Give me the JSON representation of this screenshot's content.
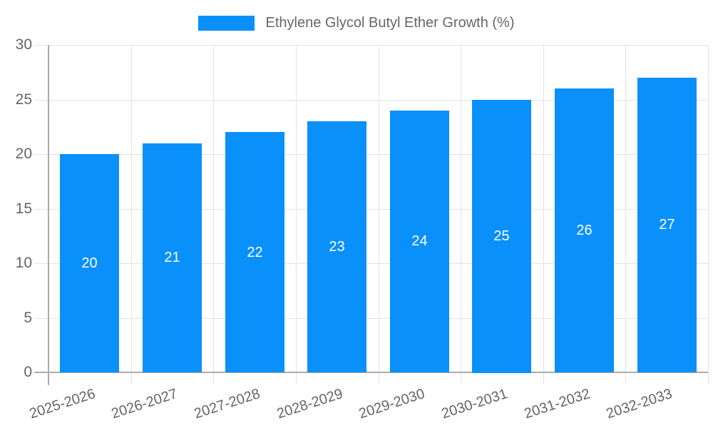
{
  "legend": {
    "label": "Ethylene Glycol Butyl Ether Growth (%)"
  },
  "colors": {
    "bar": "#0A90FA",
    "grid": "#E3E3E3",
    "axis": "#ABABAB",
    "axis_label_text": "#666666",
    "value_label_text": "#FFFFFF",
    "background": "#FFFFFF"
  },
  "chart_data": {
    "type": "bar",
    "title": "",
    "xlabel": "",
    "ylabel": "",
    "categories": [
      "2025-2026",
      "2026-2027",
      "2027-2028",
      "2028-2029",
      "2029-2030",
      "2030-2031",
      "2031-2032",
      "2032-2033"
    ],
    "series": [
      {
        "name": "Ethylene Glycol Butyl Ether Growth (%)",
        "values": [
          20,
          21,
          22,
          23,
          24,
          25,
          26,
          27
        ]
      }
    ],
    "bar_value_labels": [
      20,
      21,
      22,
      23,
      24,
      25,
      26,
      27
    ],
    "ylim": [
      0,
      30
    ],
    "yticks": [
      0,
      5,
      10,
      15,
      20,
      25,
      30
    ],
    "grid": true,
    "legend_position": "top-center"
  }
}
